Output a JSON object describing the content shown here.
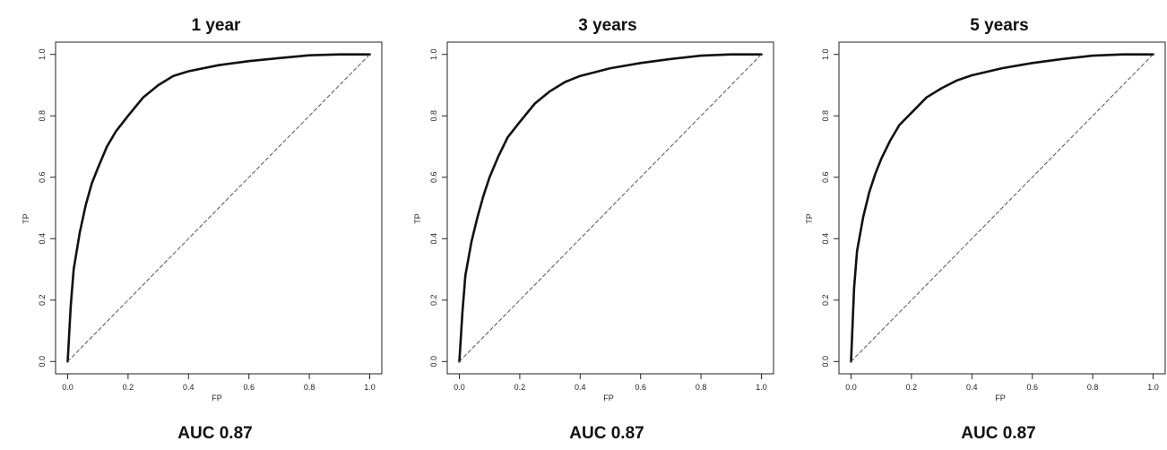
{
  "chart_data": [
    {
      "type": "line",
      "title": "1 year",
      "xlabel": "FP",
      "ylabel": "TP",
      "xlim": [
        0,
        1
      ],
      "ylim": [
        0,
        1
      ],
      "x_ticks": [
        "0.0",
        "0.2",
        "0.4",
        "0.6",
        "0.8",
        "1.0"
      ],
      "y_ticks": [
        "0.0",
        "0.2",
        "0.4",
        "0.6",
        "0.8",
        "1.0"
      ],
      "annotation": "AUC 0.87",
      "grid": false,
      "series": [
        {
          "type": "line",
          "style": "solid",
          "x": [
            0.0,
            0.01,
            0.02,
            0.04,
            0.06,
            0.08,
            0.1,
            0.13,
            0.16,
            0.2,
            0.25,
            0.3,
            0.35,
            0.4,
            0.5,
            0.6,
            0.7,
            0.8,
            0.9,
            1.0
          ],
          "y": [
            0.0,
            0.18,
            0.3,
            0.42,
            0.51,
            0.58,
            0.63,
            0.7,
            0.75,
            0.8,
            0.86,
            0.9,
            0.93,
            0.945,
            0.965,
            0.978,
            0.988,
            0.997,
            1.0,
            1.0
          ]
        },
        {
          "type": "line",
          "style": "dashed",
          "x": [
            0.0,
            1.0
          ],
          "y": [
            0.0,
            1.0
          ]
        }
      ]
    },
    {
      "type": "line",
      "title": "3 years",
      "xlabel": "FP",
      "ylabel": "TP",
      "xlim": [
        0,
        1
      ],
      "ylim": [
        0,
        1
      ],
      "x_ticks": [
        "0.0",
        "0.2",
        "0.4",
        "0.6",
        "0.8",
        "1.0"
      ],
      "y_ticks": [
        "0.0",
        "0.2",
        "0.4",
        "0.6",
        "0.8",
        "1.0"
      ],
      "annotation": "AUC 0.87",
      "grid": false,
      "series": [
        {
          "type": "line",
          "style": "solid",
          "x": [
            0.0,
            0.01,
            0.02,
            0.04,
            0.06,
            0.08,
            0.1,
            0.13,
            0.16,
            0.2,
            0.25,
            0.3,
            0.35,
            0.4,
            0.5,
            0.6,
            0.7,
            0.8,
            0.9,
            1.0
          ],
          "y": [
            0.0,
            0.16,
            0.28,
            0.39,
            0.47,
            0.54,
            0.6,
            0.67,
            0.73,
            0.78,
            0.84,
            0.88,
            0.91,
            0.93,
            0.955,
            0.972,
            0.985,
            0.996,
            1.0,
            1.0
          ]
        },
        {
          "type": "line",
          "style": "dashed",
          "x": [
            0.0,
            1.0
          ],
          "y": [
            0.0,
            1.0
          ]
        }
      ]
    },
    {
      "type": "line",
      "title": "5 years",
      "xlabel": "FP",
      "ylabel": "TP",
      "xlim": [
        0,
        1
      ],
      "ylim": [
        0,
        1
      ],
      "x_ticks": [
        "0.0",
        "0.2",
        "0.4",
        "0.6",
        "0.8",
        "1.0"
      ],
      "y_ticks": [
        "0.0",
        "0.2",
        "0.4",
        "0.6",
        "0.8",
        "1.0"
      ],
      "annotation": "AUC 0.87",
      "grid": false,
      "series": [
        {
          "type": "line",
          "style": "solid",
          "x": [
            0.0,
            0.01,
            0.02,
            0.04,
            0.06,
            0.08,
            0.1,
            0.13,
            0.16,
            0.2,
            0.25,
            0.3,
            0.35,
            0.4,
            0.5,
            0.6,
            0.7,
            0.8,
            0.9,
            1.0
          ],
          "y": [
            0.0,
            0.24,
            0.36,
            0.47,
            0.55,
            0.61,
            0.66,
            0.72,
            0.77,
            0.81,
            0.86,
            0.89,
            0.915,
            0.932,
            0.955,
            0.972,
            0.985,
            0.996,
            1.0,
            1.0
          ]
        },
        {
          "type": "line",
          "style": "dashed",
          "x": [
            0.0,
            1.0
          ],
          "y": [
            0.0,
            1.0
          ]
        }
      ]
    }
  ]
}
